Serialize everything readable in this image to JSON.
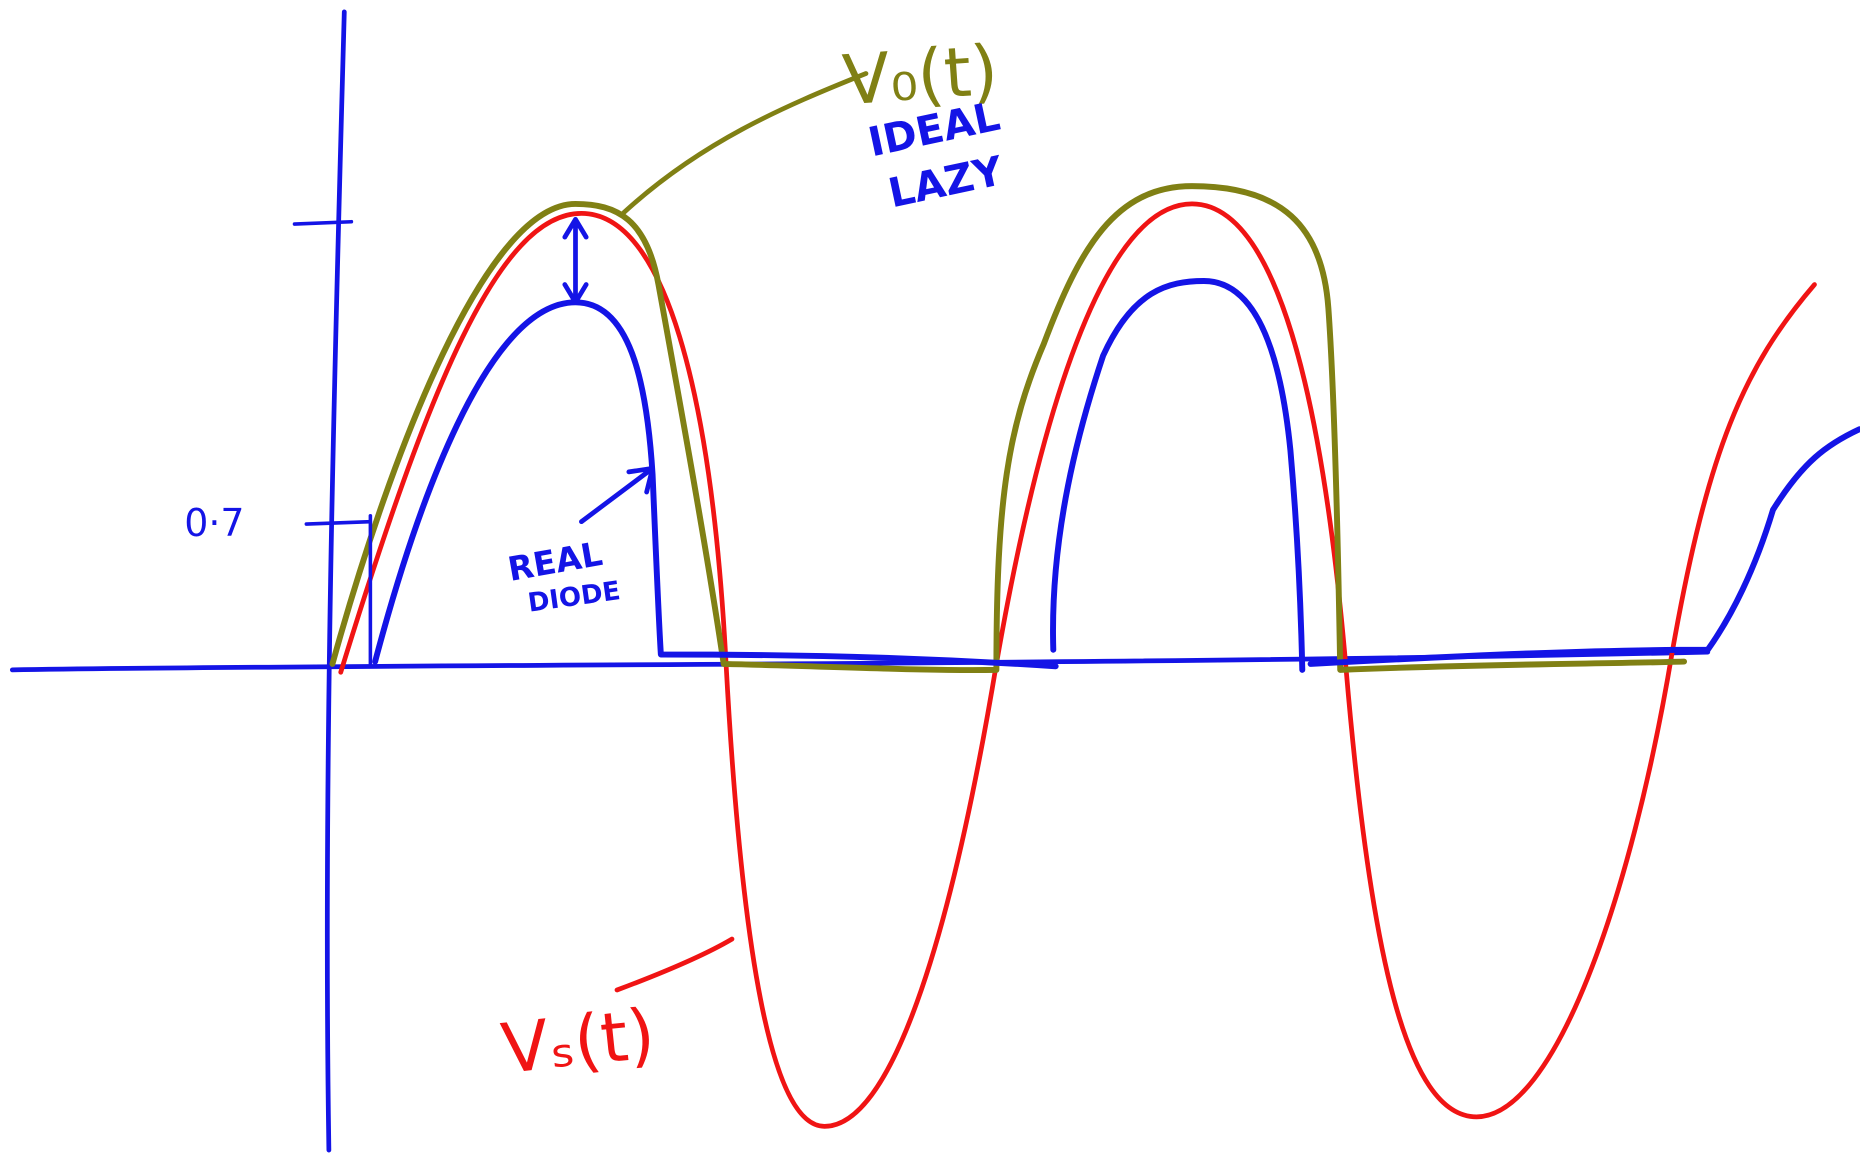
{
  "labels": {
    "vo": "V₀(t)",
    "ideal": "IDEAL",
    "lazy": "LAZY",
    "tick": "0·7",
    "real": "REAL",
    "diode": "DIODE",
    "vs": "Vₛ(t)"
  }
}
